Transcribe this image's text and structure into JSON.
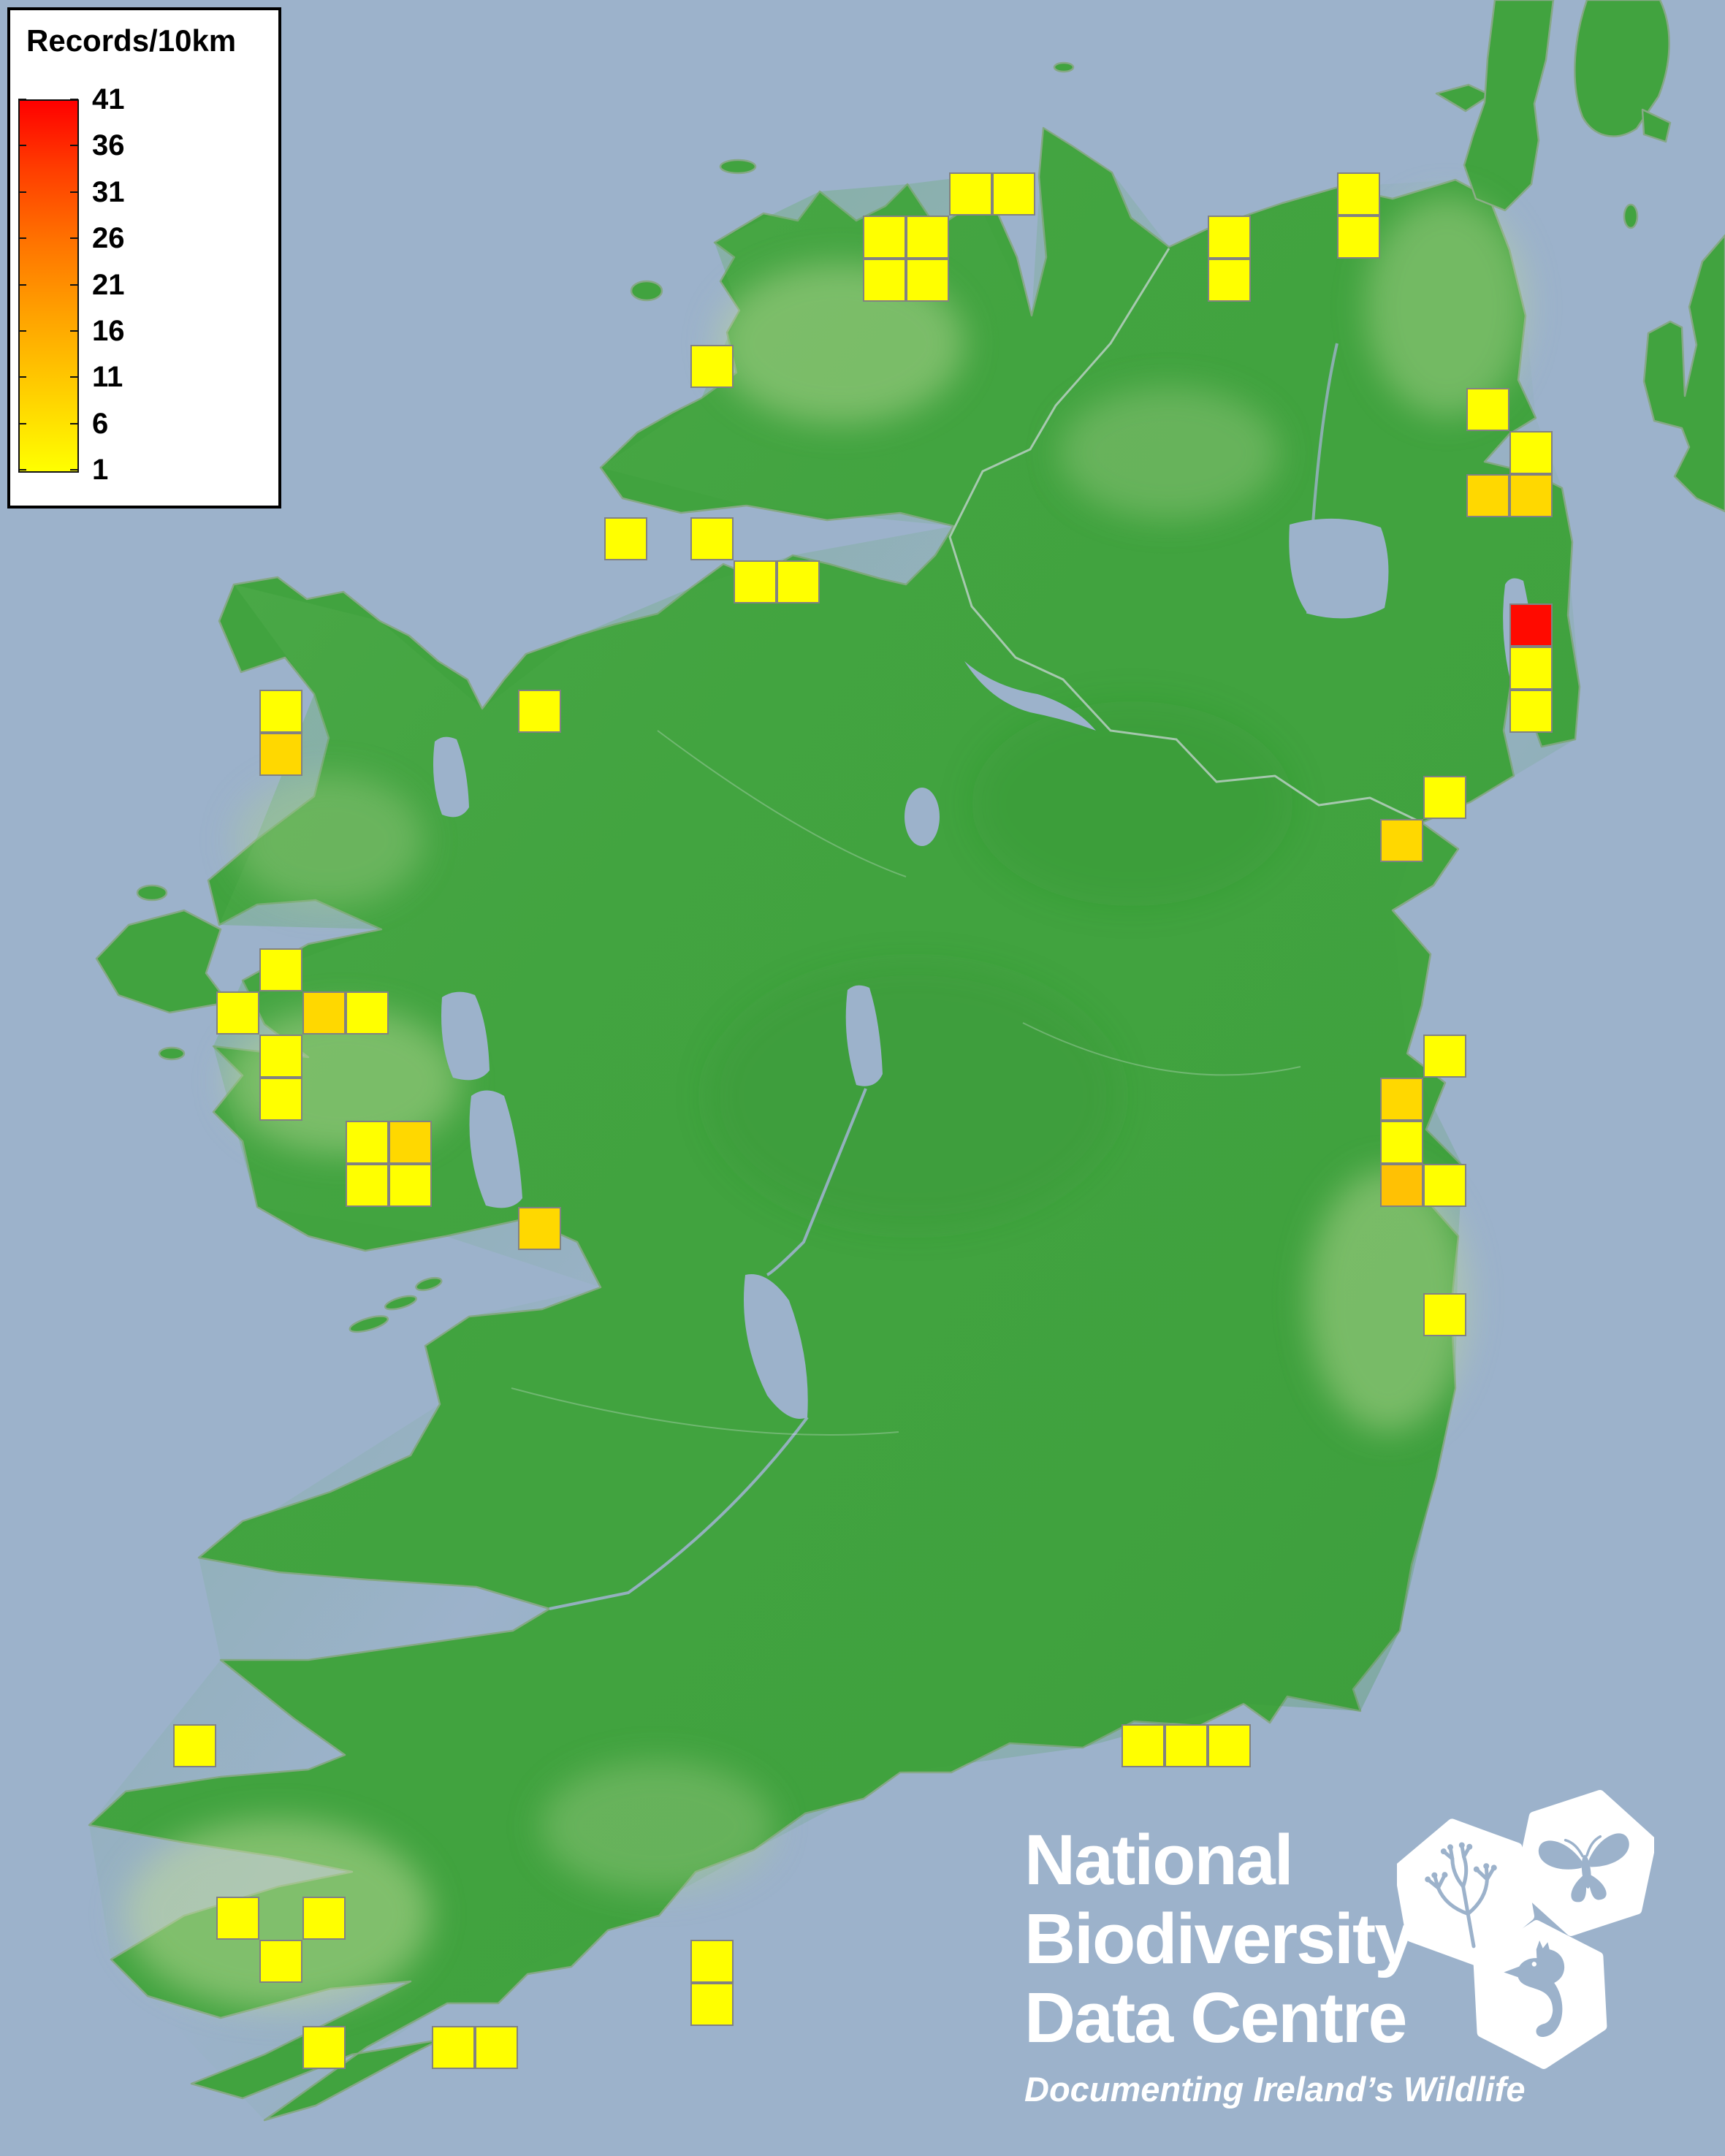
{
  "legend": {
    "title": "Records/10km",
    "ticks": [
      "41",
      "36",
      "31",
      "26",
      "21",
      "16",
      "11",
      "6",
      "1"
    ],
    "gradient_top_color": "#ff0000",
    "gradient_bottom_color": "#ffff00"
  },
  "map": {
    "ocean_color": "#9cb2cb",
    "land_color": "#41a33f",
    "square_border_color": "#828282",
    "square_colors": {
      "yellow": "#ffff00",
      "gold": "#ffd800",
      "amber": "#ffc104",
      "red": "#ff0a00"
    },
    "squares": [
      {
        "col": 22,
        "row": 4,
        "level": "yellow"
      },
      {
        "col": 23,
        "row": 4,
        "level": "yellow"
      },
      {
        "col": 20,
        "row": 5,
        "level": "yellow"
      },
      {
        "col": 21,
        "row": 5,
        "level": "yellow"
      },
      {
        "col": 20,
        "row": 6,
        "level": "yellow"
      },
      {
        "col": 21,
        "row": 6,
        "level": "yellow"
      },
      {
        "col": 28,
        "row": 5,
        "level": "yellow"
      },
      {
        "col": 28,
        "row": 6,
        "level": "yellow"
      },
      {
        "col": 31,
        "row": 4,
        "level": "yellow"
      },
      {
        "col": 31,
        "row": 5,
        "level": "yellow"
      },
      {
        "col": 34,
        "row": 9,
        "level": "yellow"
      },
      {
        "col": 35,
        "row": 10,
        "level": "yellow"
      },
      {
        "col": 34,
        "row": 11,
        "level": "gold"
      },
      {
        "col": 35,
        "row": 11,
        "level": "gold"
      },
      {
        "col": 35,
        "row": 14,
        "level": "red"
      },
      {
        "col": 35,
        "row": 15,
        "level": "yellow"
      },
      {
        "col": 35,
        "row": 16,
        "level": "yellow"
      },
      {
        "col": 33,
        "row": 18,
        "level": "yellow"
      },
      {
        "col": 32,
        "row": 19,
        "level": "gold"
      },
      {
        "col": 16,
        "row": 8,
        "level": "yellow"
      },
      {
        "col": 14,
        "row": 12,
        "level": "yellow"
      },
      {
        "col": 16,
        "row": 12,
        "level": "yellow"
      },
      {
        "col": 17,
        "row": 13,
        "level": "yellow"
      },
      {
        "col": 18,
        "row": 13,
        "level": "yellow"
      },
      {
        "col": 6,
        "row": 16,
        "level": "yellow"
      },
      {
        "col": 6,
        "row": 17,
        "level": "gold"
      },
      {
        "col": 12,
        "row": 16,
        "level": "yellow"
      },
      {
        "col": 6,
        "row": 22,
        "level": "yellow"
      },
      {
        "col": 5,
        "row": 23,
        "level": "yellow"
      },
      {
        "col": 7,
        "row": 23,
        "level": "gold"
      },
      {
        "col": 8,
        "row": 23,
        "level": "yellow"
      },
      {
        "col": 6,
        "row": 24,
        "level": "yellow"
      },
      {
        "col": 6,
        "row": 25,
        "level": "yellow"
      },
      {
        "col": 8,
        "row": 26,
        "level": "yellow"
      },
      {
        "col": 9,
        "row": 26,
        "level": "gold"
      },
      {
        "col": 8,
        "row": 27,
        "level": "yellow"
      },
      {
        "col": 9,
        "row": 27,
        "level": "yellow"
      },
      {
        "col": 12,
        "row": 28,
        "level": "gold"
      },
      {
        "col": 33,
        "row": 24,
        "level": "yellow"
      },
      {
        "col": 32,
        "row": 25,
        "level": "gold"
      },
      {
        "col": 32,
        "row": 26,
        "level": "yellow"
      },
      {
        "col": 32,
        "row": 27,
        "level": "amber"
      },
      {
        "col": 33,
        "row": 27,
        "level": "yellow"
      },
      {
        "col": 33,
        "row": 30,
        "level": "yellow"
      },
      {
        "col": 26,
        "row": 40,
        "level": "yellow"
      },
      {
        "col": 27,
        "row": 40,
        "level": "yellow"
      },
      {
        "col": 28,
        "row": 40,
        "level": "yellow"
      },
      {
        "col": 4,
        "row": 40,
        "level": "yellow"
      },
      {
        "col": 5,
        "row": 44,
        "level": "yellow"
      },
      {
        "col": 7,
        "row": 44,
        "level": "yellow"
      },
      {
        "col": 6,
        "row": 45,
        "level": "yellow"
      },
      {
        "col": 16,
        "row": 45,
        "level": "yellow"
      },
      {
        "col": 16,
        "row": 46,
        "level": "yellow"
      },
      {
        "col": 7,
        "row": 47,
        "level": "yellow"
      },
      {
        "col": 10,
        "row": 47,
        "level": "yellow"
      },
      {
        "col": 11,
        "row": 47,
        "level": "yellow"
      }
    ]
  },
  "logo": {
    "line1": "National",
    "line2": "Biodiversity",
    "line3": "Data Centre",
    "tagline": "Documenting Ireland’s Wildlife",
    "icons": [
      "plant-hexagon",
      "butterfly-hexagon",
      "seahorse-hexagon"
    ]
  }
}
